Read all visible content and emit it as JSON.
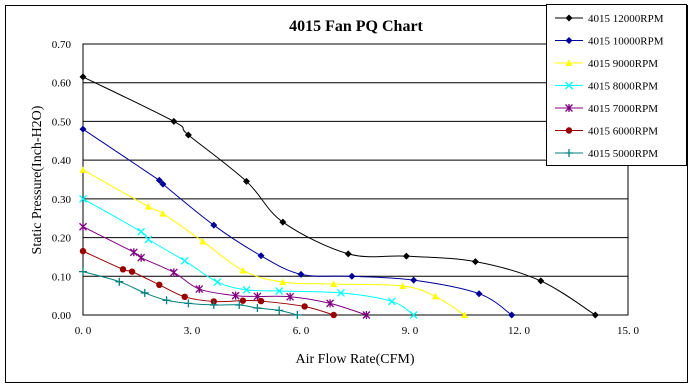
{
  "chart_data": {
    "type": "line",
    "title": "4015 Fan PQ Chart",
    "xlabel": "Air Flow Rate(CFM)",
    "ylabel": "Static Pressure(Inch-H2O)",
    "xlim": [
      0,
      15
    ],
    "ylim": [
      0,
      0.7
    ],
    "x_ticks": [
      "0. 0",
      "3. 0",
      "6. 0",
      "9. 0",
      "12. 0",
      "15. 0"
    ],
    "y_ticks": [
      "0.00",
      "0.10",
      "0.20",
      "0.30",
      "0.40",
      "0.50",
      "0.60",
      "0.70"
    ],
    "grid": "horizontal",
    "legend_position": "top-right",
    "series": [
      {
        "name": "4015 12000RPM",
        "color": "#000000",
        "marker": "diamond",
        "points": [
          [
            0,
            0.615
          ],
          [
            2.5,
            0.5
          ],
          [
            2.9,
            0.465
          ],
          [
            4.5,
            0.345
          ],
          [
            5.5,
            0.24
          ],
          [
            7.3,
            0.158
          ],
          [
            8.9,
            0.152
          ],
          [
            10.8,
            0.138
          ],
          [
            12.6,
            0.088
          ],
          [
            14.1,
            0.0
          ]
        ]
      },
      {
        "name": "4015 10000RPM",
        "color": "#000099",
        "marker": "diamond",
        "points": [
          [
            0,
            0.48
          ],
          [
            2.1,
            0.348
          ],
          [
            2.2,
            0.338
          ],
          [
            3.6,
            0.232
          ],
          [
            4.9,
            0.153
          ],
          [
            6.0,
            0.105
          ],
          [
            7.4,
            0.1
          ],
          [
            9.1,
            0.09
          ],
          [
            10.9,
            0.055
          ],
          [
            11.8,
            0.0
          ]
        ]
      },
      {
        "name": "4015 9000RPM",
        "color": "#ffff00",
        "marker": "triangle",
        "points": [
          [
            0,
            0.375
          ],
          [
            1.8,
            0.28
          ],
          [
            2.2,
            0.262
          ],
          [
            3.3,
            0.19
          ],
          [
            4.4,
            0.115
          ],
          [
            5.5,
            0.085
          ],
          [
            6.9,
            0.08
          ],
          [
            8.8,
            0.075
          ],
          [
            9.7,
            0.048
          ],
          [
            10.5,
            0.0
          ]
        ]
      },
      {
        "name": "4015 8000RPM",
        "color": "#00ffff",
        "marker": "x",
        "points": [
          [
            0,
            0.3
          ],
          [
            1.6,
            0.215
          ],
          [
            1.8,
            0.195
          ],
          [
            2.8,
            0.14
          ],
          [
            3.7,
            0.085
          ],
          [
            4.5,
            0.065
          ],
          [
            5.4,
            0.062
          ],
          [
            7.1,
            0.057
          ],
          [
            8.5,
            0.035
          ],
          [
            9.1,
            0.0
          ]
        ]
      },
      {
        "name": "4015 7000RPM",
        "color": "#800080",
        "marker": "asterisk",
        "points": [
          [
            0,
            0.228
          ],
          [
            1.4,
            0.162
          ],
          [
            1.6,
            0.148
          ],
          [
            2.5,
            0.11
          ],
          [
            3.2,
            0.067
          ],
          [
            4.2,
            0.05
          ],
          [
            4.8,
            0.048
          ],
          [
            5.7,
            0.047
          ],
          [
            6.8,
            0.03
          ],
          [
            7.8,
            0.0
          ]
        ]
      },
      {
        "name": "4015 6000RPM",
        "color": "#990000",
        "marker": "circle",
        "points": [
          [
            0,
            0.165
          ],
          [
            1.1,
            0.118
          ],
          [
            1.35,
            0.112
          ],
          [
            2.1,
            0.078
          ],
          [
            2.8,
            0.047
          ],
          [
            3.6,
            0.035
          ],
          [
            4.4,
            0.037
          ],
          [
            4.9,
            0.036
          ],
          [
            6.1,
            0.022
          ],
          [
            6.9,
            0.0
          ]
        ]
      },
      {
        "name": "4015 5000RPM",
        "color": "#008080",
        "marker": "plus",
        "points": [
          [
            0,
            0.112
          ],
          [
            1.0,
            0.086
          ],
          [
            1.7,
            0.057
          ],
          [
            2.3,
            0.038
          ],
          [
            2.9,
            0.03
          ],
          [
            3.6,
            0.026
          ],
          [
            4.3,
            0.026
          ],
          [
            4.8,
            0.018
          ],
          [
            5.4,
            0.012
          ],
          [
            5.9,
            0.0
          ]
        ]
      }
    ]
  }
}
